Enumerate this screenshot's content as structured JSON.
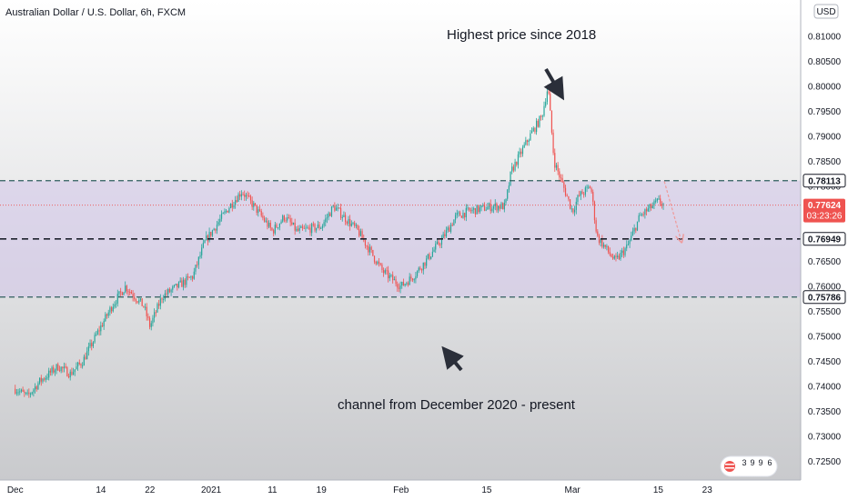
{
  "header": {
    "title": "Australian Dollar / U.S. Dollar, 6h, FXCM"
  },
  "currency_badge": "USD",
  "annotations": {
    "top": "Highest price since 2018",
    "bottom": "channel from December 2020 - present"
  },
  "price_tags": {
    "upper": "0.78113",
    "current": "0.77624",
    "countdown": "03:23:26",
    "middle": "0.76949",
    "lower": "0.75786"
  },
  "widget_digits": [
    "3",
    "9",
    "9",
    "6"
  ],
  "colors": {
    "up": "#26a69a",
    "down": "#ef5350",
    "channel_fill": "#d1c4e9",
    "arrow": "#2a2e39",
    "current_price": "#ef5350"
  },
  "chart_data": {
    "type": "candlestick",
    "symbol": "AUDUSD",
    "interval": "6h",
    "x_tick_labels": [
      "Dec",
      "14",
      "22",
      "2021",
      "11",
      "19",
      "Feb",
      "15",
      "Mar",
      "15",
      "23"
    ],
    "y_tick_labels": [
      "0.81000",
      "0.80500",
      "0.80000",
      "0.79500",
      "0.79000",
      "0.78500",
      "0.78000",
      "0.77500",
      "0.77000",
      "0.76500",
      "0.76000",
      "0.75500",
      "0.75000",
      "0.74500",
      "0.74000",
      "0.73500",
      "0.73000",
      "0.72500"
    ],
    "ylim": [
      0.7225,
      0.8155
    ],
    "horizontal_levels": [
      0.78113,
      0.76949,
      0.75786
    ],
    "channel": {
      "top": 0.78113,
      "bottom": 0.75786
    },
    "current_price": 0.77624,
    "close_path": [
      {
        "date": "2020-11-30",
        "close": 0.7395
      },
      {
        "date": "2020-12-02",
        "close": 0.738
      },
      {
        "date": "2020-12-04",
        "close": 0.741
      },
      {
        "date": "2020-12-07",
        "close": 0.744
      },
      {
        "date": "2020-12-09",
        "close": 0.7425
      },
      {
        "date": "2020-12-11",
        "close": 0.745
      },
      {
        "date": "2020-12-14",
        "close": 0.752
      },
      {
        "date": "2020-12-16",
        "close": 0.7565
      },
      {
        "date": "2020-12-18",
        "close": 0.76
      },
      {
        "date": "2020-12-21",
        "close": 0.756
      },
      {
        "date": "2020-12-22",
        "close": 0.752
      },
      {
        "date": "2020-12-24",
        "close": 0.758
      },
      {
        "date": "2020-12-29",
        "close": 0.762
      },
      {
        "date": "2020-12-31",
        "close": 0.769
      },
      {
        "date": "2021-01-04",
        "close": 0.776
      },
      {
        "date": "2021-01-06",
        "close": 0.779
      },
      {
        "date": "2021-01-08",
        "close": 0.776
      },
      {
        "date": "2021-01-11",
        "close": 0.771
      },
      {
        "date": "2021-01-13",
        "close": 0.774
      },
      {
        "date": "2021-01-15",
        "close": 0.771
      },
      {
        "date": "2021-01-19",
        "close": 0.772
      },
      {
        "date": "2021-01-21",
        "close": 0.776
      },
      {
        "date": "2021-01-25",
        "close": 0.771
      },
      {
        "date": "2021-01-27",
        "close": 0.767
      },
      {
        "date": "2021-01-29",
        "close": 0.763
      },
      {
        "date": "2021-02-01",
        "close": 0.76
      },
      {
        "date": "2021-02-03",
        "close": 0.762
      },
      {
        "date": "2021-02-05",
        "close": 0.765
      },
      {
        "date": "2021-02-08",
        "close": 0.77
      },
      {
        "date": "2021-02-10",
        "close": 0.774
      },
      {
        "date": "2021-02-12",
        "close": 0.775
      },
      {
        "date": "2021-02-16",
        "close": 0.776
      },
      {
        "date": "2021-02-18",
        "close": 0.776
      },
      {
        "date": "2021-02-19",
        "close": 0.783
      },
      {
        "date": "2021-02-22",
        "close": 0.79
      },
      {
        "date": "2021-02-24",
        "close": 0.794
      },
      {
        "date": "2021-02-25",
        "close": 0.8
      },
      {
        "date": "2021-02-26",
        "close": 0.785
      },
      {
        "date": "2021-03-01",
        "close": 0.775
      },
      {
        "date": "2021-03-02",
        "close": 0.778
      },
      {
        "date": "2021-03-04",
        "close": 0.78
      },
      {
        "date": "2021-03-05",
        "close": 0.77
      },
      {
        "date": "2021-03-08",
        "close": 0.765
      },
      {
        "date": "2021-03-10",
        "close": 0.768
      },
      {
        "date": "2021-03-12",
        "close": 0.774
      },
      {
        "date": "2021-03-15",
        "close": 0.777
      },
      {
        "date": "2021-03-16",
        "close": 0.7762
      }
    ]
  }
}
